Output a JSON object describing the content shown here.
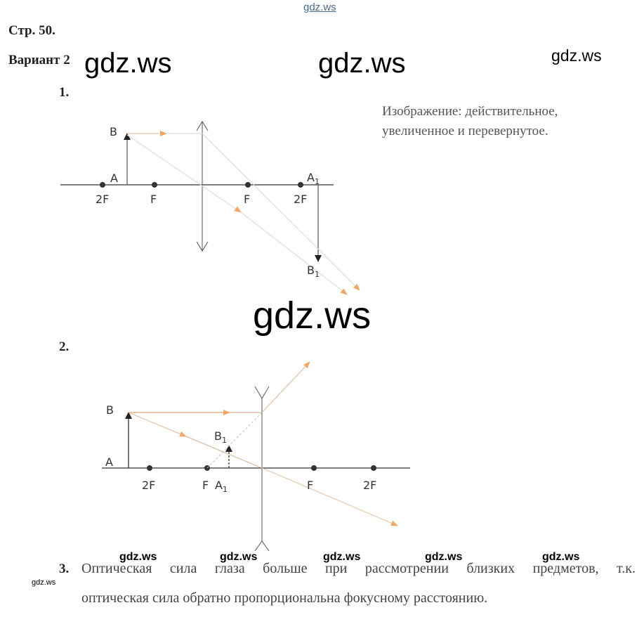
{
  "header": {
    "page": "Стр. 50.",
    "variant": "Вариант 2"
  },
  "watermarks": {
    "top": "gdz.ws",
    "big_left": "gdz.ws",
    "big_center": "gdz.ws",
    "right": "gdz.ws",
    "huge": "gdz.ws",
    "row": [
      "gdz.ws",
      "gdz.ws",
      "gdz.ws",
      "gdz.ws",
      "gdz.ws"
    ],
    "tiny": "gdz.ws"
  },
  "task1": {
    "number": "1.",
    "answer_line1": "Изображение: действительное,",
    "answer_line2": "увеличенное и перевернутое.",
    "labels": {
      "B": "B",
      "A": "A",
      "A1": "A",
      "B1": "B",
      "sub": "1",
      "2F_left": "2F",
      "F_left": "F",
      "F_right": "F",
      "2F_right": "2F"
    }
  },
  "task2": {
    "number": "2.",
    "labels": {
      "B": "B",
      "A": "A",
      "B1": "B",
      "A1": "A",
      "sub": "1",
      "2F_left": "2F",
      "F_left": "F",
      "F_right": "F",
      "2F_right": "2F"
    }
  },
  "task3": {
    "number": "3.",
    "line1": "Оптическая сила глаза больше при рассмотрении близких предметов, т.к.",
    "line2": "оптическая сила обратно пропорциональна фокусному расстоянию."
  },
  "colors": {
    "ray": "#f0a868",
    "line": "#333333",
    "faint_ray": "#d8d2c8"
  }
}
